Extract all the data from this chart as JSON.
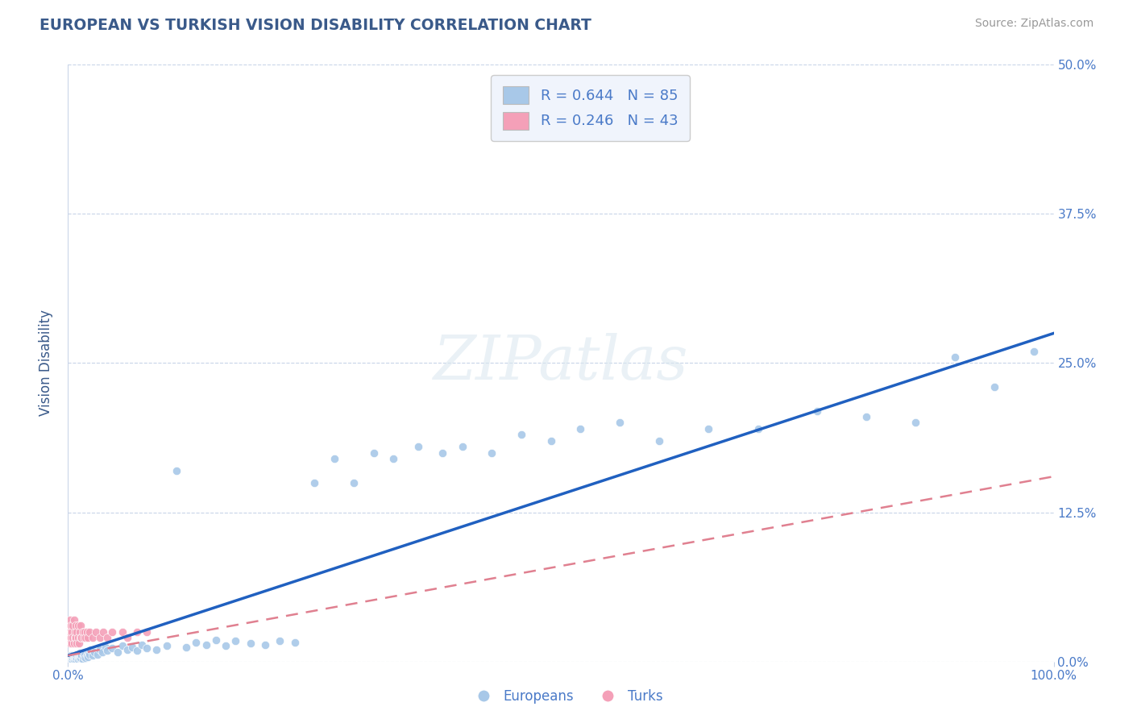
{
  "title": "EUROPEAN VS TURKISH VISION DISABILITY CORRELATION CHART",
  "source": "Source: ZipAtlas.com",
  "xlabel": "",
  "ylabel": "Vision Disability",
  "xlim": [
    0,
    1.0
  ],
  "ylim": [
    0,
    0.5
  ],
  "yticks": [
    0.0,
    0.125,
    0.25,
    0.375,
    0.5
  ],
  "ytick_labels": [
    "0.0%",
    "12.5%",
    "25.0%",
    "37.5%",
    "50.0%"
  ],
  "xticks": [
    0.0,
    1.0
  ],
  "xtick_labels": [
    "0.0%",
    "100.0%"
  ],
  "legend_r_european": "R = 0.644",
  "legend_n_european": "N = 85",
  "legend_r_turkish": "R = 0.246",
  "legend_n_turkish": "N = 43",
  "european_color": "#a8c8e8",
  "turkish_color": "#f4a0b8",
  "trend_european_color": "#2060c0",
  "trend_turkish_color": "#e08090",
  "background_color": "#ffffff",
  "grid_color": "#c8d4e8",
  "watermark": "ZIPatlas",
  "title_color": "#3a5a8a",
  "axis_label_color": "#3a5a8a",
  "tick_label_color": "#4a7ac8",
  "legend_box_color": "#f0f4fc",
  "eu_trend_x0": 0.0,
  "eu_trend_y0": 0.005,
  "eu_trend_x1": 1.0,
  "eu_trend_y1": 0.275,
  "tr_trend_x0": 0.0,
  "tr_trend_y0": 0.005,
  "tr_trend_x1": 1.0,
  "tr_trend_y1": 0.155,
  "europeans_x": [
    0.002,
    0.003,
    0.003,
    0.004,
    0.004,
    0.005,
    0.005,
    0.005,
    0.006,
    0.006,
    0.007,
    0.007,
    0.008,
    0.008,
    0.009,
    0.009,
    0.01,
    0.01,
    0.011,
    0.011,
    0.012,
    0.012,
    0.013,
    0.013,
    0.014,
    0.015,
    0.015,
    0.016,
    0.017,
    0.018,
    0.019,
    0.02,
    0.021,
    0.022,
    0.023,
    0.025,
    0.027,
    0.03,
    0.032,
    0.035,
    0.038,
    0.04,
    0.045,
    0.05,
    0.055,
    0.06,
    0.065,
    0.07,
    0.075,
    0.08,
    0.09,
    0.1,
    0.11,
    0.12,
    0.13,
    0.14,
    0.15,
    0.16,
    0.17,
    0.185,
    0.2,
    0.215,
    0.23,
    0.25,
    0.27,
    0.29,
    0.31,
    0.33,
    0.355,
    0.38,
    0.4,
    0.43,
    0.46,
    0.49,
    0.52,
    0.56,
    0.6,
    0.65,
    0.7,
    0.76,
    0.81,
    0.86,
    0.9,
    0.94,
    0.98
  ],
  "europeans_y": [
    0.003,
    0.002,
    0.005,
    0.002,
    0.004,
    0.001,
    0.003,
    0.005,
    0.002,
    0.004,
    0.003,
    0.005,
    0.002,
    0.004,
    0.003,
    0.006,
    0.002,
    0.005,
    0.003,
    0.006,
    0.004,
    0.007,
    0.003,
    0.006,
    0.005,
    0.002,
    0.007,
    0.004,
    0.006,
    0.003,
    0.005,
    0.004,
    0.007,
    0.006,
    0.01,
    0.005,
    0.008,
    0.006,
    0.01,
    0.008,
    0.012,
    0.009,
    0.011,
    0.008,
    0.013,
    0.01,
    0.012,
    0.009,
    0.014,
    0.011,
    0.01,
    0.013,
    0.16,
    0.012,
    0.016,
    0.014,
    0.018,
    0.013,
    0.017,
    0.015,
    0.014,
    0.017,
    0.016,
    0.15,
    0.17,
    0.15,
    0.175,
    0.17,
    0.18,
    0.175,
    0.18,
    0.175,
    0.19,
    0.185,
    0.195,
    0.2,
    0.185,
    0.195,
    0.195,
    0.21,
    0.205,
    0.2,
    0.255,
    0.23,
    0.26
  ],
  "turks_x": [
    0.001,
    0.001,
    0.002,
    0.002,
    0.002,
    0.003,
    0.003,
    0.004,
    0.004,
    0.005,
    0.005,
    0.006,
    0.006,
    0.007,
    0.007,
    0.008,
    0.008,
    0.009,
    0.009,
    0.01,
    0.01,
    0.011,
    0.012,
    0.013,
    0.013,
    0.014,
    0.015,
    0.016,
    0.017,
    0.018,
    0.019,
    0.02,
    0.022,
    0.025,
    0.028,
    0.032,
    0.036,
    0.04,
    0.045,
    0.055,
    0.06,
    0.07,
    0.08
  ],
  "turks_y": [
    0.02,
    0.03,
    0.015,
    0.025,
    0.035,
    0.02,
    0.03,
    0.015,
    0.025,
    0.02,
    0.03,
    0.015,
    0.035,
    0.02,
    0.025,
    0.02,
    0.03,
    0.015,
    0.025,
    0.02,
    0.03,
    0.015,
    0.025,
    0.02,
    0.03,
    0.02,
    0.025,
    0.02,
    0.025,
    0.02,
    0.025,
    0.02,
    0.025,
    0.02,
    0.025,
    0.02,
    0.025,
    0.02,
    0.025,
    0.025,
    0.02,
    0.025,
    0.025
  ]
}
